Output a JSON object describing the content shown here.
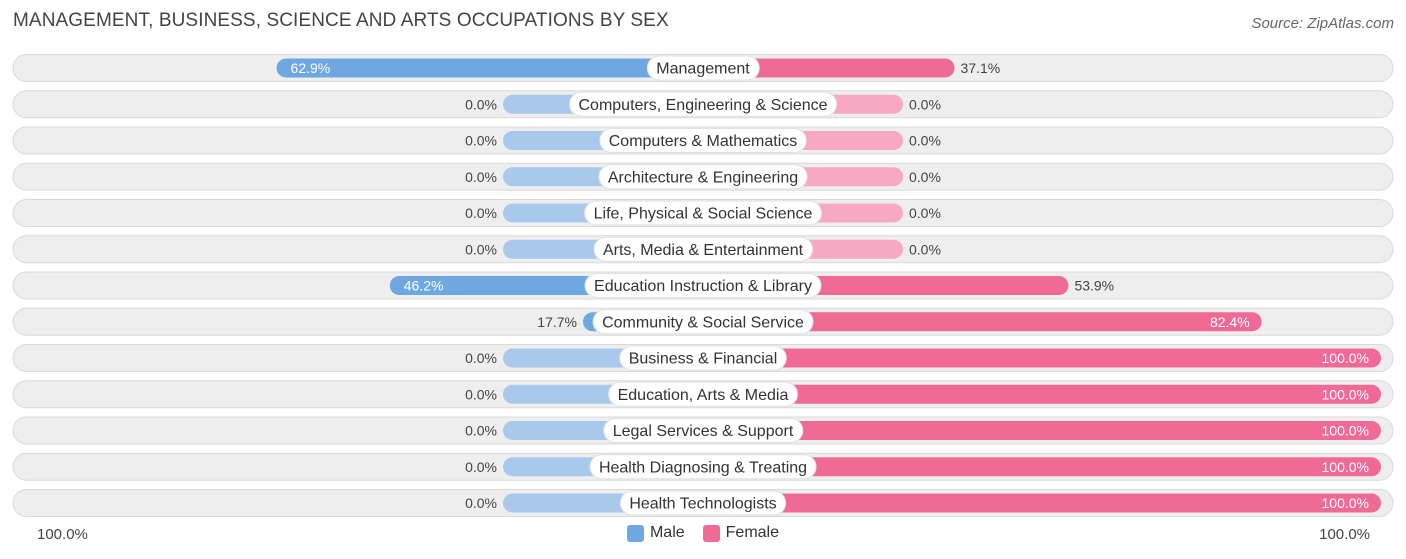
{
  "colors": {
    "male_dark": "#6fa8e0",
    "male_light": "#a9c9ec",
    "female_dark": "#f06a96",
    "female_light": "#f7a8c2",
    "track": "#eeeeee",
    "track_border": "#d9d9d9"
  },
  "chart_data": {
    "type": "bar",
    "orientation": "horizontal-diverging",
    "title": "MANAGEMENT, BUSINESS, SCIENCE AND ARTS OCCUPATIONS BY SEX",
    "source": "Source: ZipAtlas.com",
    "axis_left_label": "100.0%",
    "axis_right_label": "100.0%",
    "xlim": [
      -100,
      100
    ],
    "legend": [
      "Male",
      "Female"
    ],
    "categories": [
      "Management",
      "Computers, Engineering & Science",
      "Computers & Mathematics",
      "Architecture & Engineering",
      "Life, Physical & Social Science",
      "Arts, Media & Entertainment",
      "Education Instruction & Library",
      "Community & Social Service",
      "Business & Financial",
      "Education, Arts & Media",
      "Legal Services & Support",
      "Health Diagnosing & Treating",
      "Health Technologists"
    ],
    "series": [
      {
        "name": "Male",
        "values": [
          62.9,
          0.0,
          0.0,
          0.0,
          0.0,
          0.0,
          46.2,
          17.7,
          0.0,
          0.0,
          0.0,
          0.0,
          0.0
        ],
        "labels": [
          "62.9%",
          "0.0%",
          "0.0%",
          "0.0%",
          "0.0%",
          "0.0%",
          "46.2%",
          "17.7%",
          "0.0%",
          "0.0%",
          "0.0%",
          "0.0%",
          "0.0%"
        ]
      },
      {
        "name": "Female",
        "values": [
          37.1,
          0.0,
          0.0,
          0.0,
          0.0,
          0.0,
          53.9,
          82.4,
          100.0,
          100.0,
          100.0,
          100.0,
          100.0
        ],
        "labels": [
          "37.1%",
          "0.0%",
          "0.0%",
          "0.0%",
          "0.0%",
          "0.0%",
          "53.9%",
          "82.4%",
          "100.0%",
          "100.0%",
          "100.0%",
          "100.0%",
          "100.0%"
        ]
      }
    ]
  }
}
